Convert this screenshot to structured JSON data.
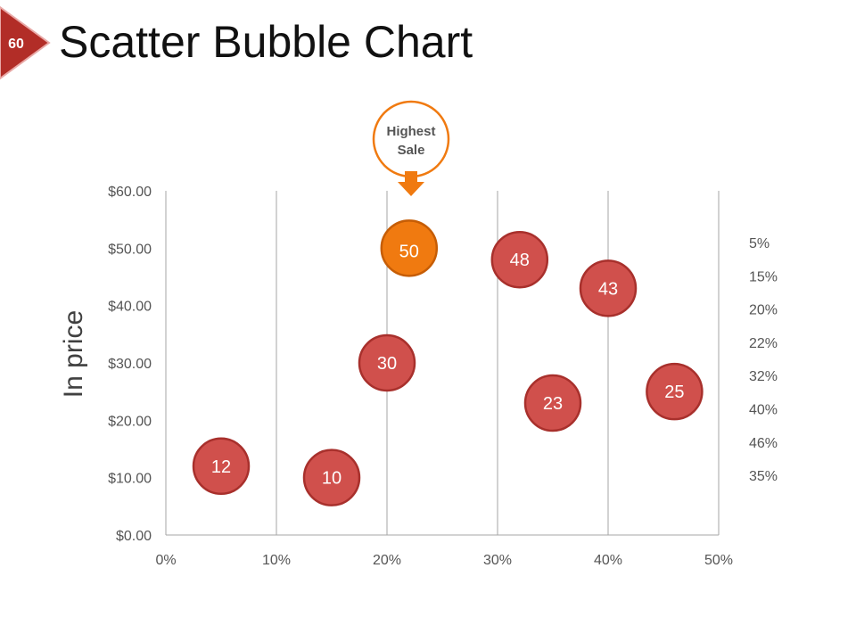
{
  "slide": {
    "number": "60",
    "title": "Scatter Bubble Chart"
  },
  "colors": {
    "accent": "#b22d27",
    "bubble": "#d0504c",
    "bubble_stroke": "#a8302c",
    "highlight": "#f07a10",
    "highlight_stroke": "#c65d05",
    "grid": "#a6a6a6",
    "text": "#555555"
  },
  "callout": {
    "line1": "Highest",
    "line2": "Sale"
  },
  "chart_data": {
    "type": "scatter",
    "title": "Scatter Bubble Chart",
    "xlabel": "",
    "ylabel": "In price",
    "xlim": [
      0,
      50
    ],
    "ylim": [
      0,
      60
    ],
    "x_ticks": [
      "0%",
      "10%",
      "20%",
      "30%",
      "40%",
      "50%"
    ],
    "y_ticks": [
      "$0.00",
      "$10.00",
      "$20.00",
      "$30.00",
      "$40.00",
      "$50.00",
      "$60.00"
    ],
    "grid": "vertical",
    "points": [
      {
        "x": 5,
        "y": 12,
        "label": "12",
        "highlight": false
      },
      {
        "x": 15,
        "y": 10,
        "label": "10",
        "highlight": false
      },
      {
        "x": 20,
        "y": 30,
        "label": "30",
        "highlight": false
      },
      {
        "x": 22,
        "y": 50,
        "label": "50",
        "highlight": true
      },
      {
        "x": 32,
        "y": 48,
        "label": "48",
        "highlight": false
      },
      {
        "x": 35,
        "y": 23,
        "label": "23",
        "highlight": false
      },
      {
        "x": 40,
        "y": 43,
        "label": "43",
        "highlight": false
      },
      {
        "x": 46,
        "y": 25,
        "label": "25",
        "highlight": false
      }
    ],
    "side_labels": [
      "5%",
      "15%",
      "20%",
      "22%",
      "32%",
      "40%",
      "46%",
      "35%"
    ]
  }
}
